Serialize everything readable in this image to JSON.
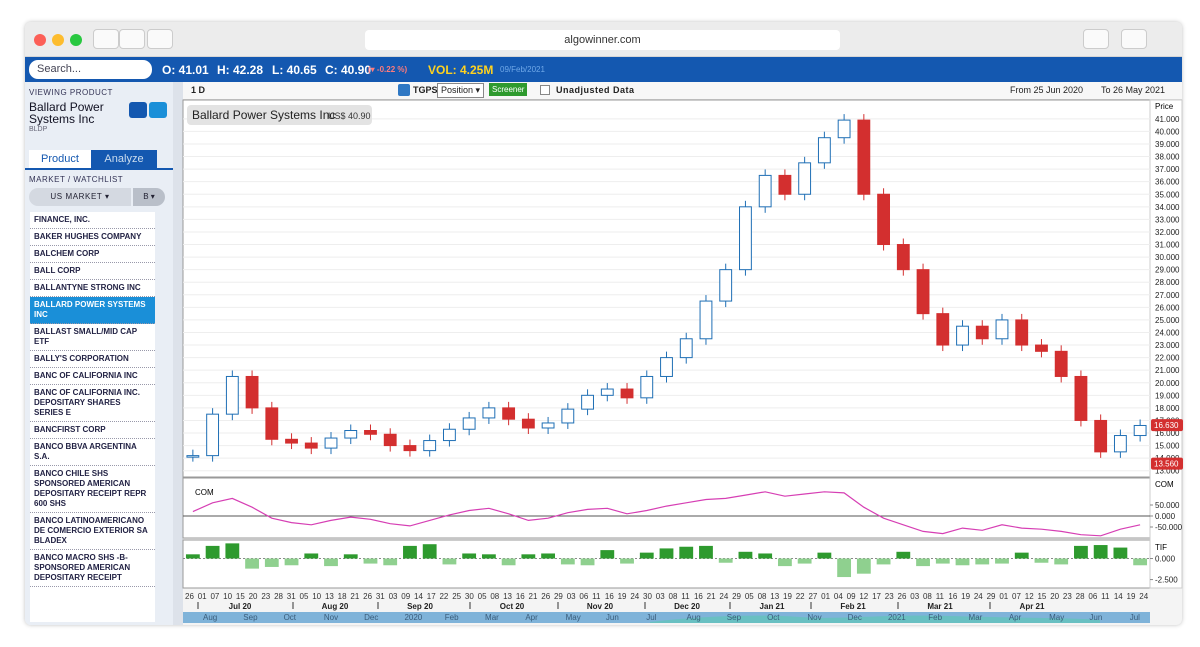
{
  "browser": {
    "url": "algowinner.com"
  },
  "toolbar": {
    "search": "Search...",
    "open": "O: 41.01",
    "high": "H: 42.28",
    "low": "L: 40.65",
    "close": "C: 40.90",
    "change": "(▾ -0.22 %)",
    "volume": "VOL: 4.25M",
    "date": "09/Feb/2021"
  },
  "sidebar": {
    "viewing": "VIEWING PRODUCT",
    "name": "Ballard Power Systems Inc",
    "ticker": "BLDP",
    "tabs": [
      "Product",
      "Analyze"
    ],
    "section": "MARKET / WATCHLIST",
    "market": "US MARKET ▾",
    "letter": "B ▾",
    "items": [
      "FINANCE, INC.",
      "BAKER HUGHES COMPANY",
      "BALCHEM CORP",
      "BALL CORP",
      "BALLANTYNE STRONG INC",
      "BALLARD POWER SYSTEMS INC",
      "BALLAST SMALL/MID CAP ETF",
      "BALLY'S CORPORATION",
      "BANC OF CALIFORNIA INC",
      "BANC OF CALIFORNIA INC. DEPOSITARY SHARES SERIES E",
      "BANCFIRST CORP",
      "BANCO BBVA ARGENTINA S.A.",
      "BANCO CHILE SHS SPONSORED AMERICAN DEPOSITARY RECEIPT REPR 600 SHS",
      "BANCO LATINOAMERICANO DE COMERCIO EXTERIOR SA BLADEX",
      "BANCO MACRO SHS -B- SPONSORED AMERICAN DEPOSITARY RECEIPT"
    ],
    "selected": 5
  },
  "chart_toolbar": {
    "interval": "1 D",
    "tgps": "TGPS",
    "position": "Position ▾",
    "screener": "Screener",
    "unadjusted": "Unadjusted Data",
    "from": "From 25 Jun 2020",
    "to": "To 26 May 2021"
  },
  "chart_data": {
    "type": "candlestick",
    "title": "Ballard Power Systems Inc",
    "price": "US$ 40.90",
    "axis_label": "Price",
    "up_color": "#1f6fb5",
    "down_color": "#d32f2f",
    "values": [
      14.2,
      17.5,
      20.5,
      18.0,
      15.5,
      15.2,
      14.8,
      15.6,
      16.2,
      15.9,
      15.0,
      14.6,
      15.4,
      16.3,
      17.2,
      18.0,
      17.1,
      16.4,
      16.8,
      17.9,
      19.0,
      19.5,
      18.8,
      20.5,
      22.0,
      23.5,
      26.5,
      29.0,
      34.0,
      36.5,
      35.0,
      37.5,
      39.5,
      40.9,
      35.0,
      31.0,
      29.0,
      25.5,
      23.0,
      24.5,
      23.5,
      25.0,
      23.0,
      22.5,
      20.5,
      17.0,
      14.5,
      15.8,
      16.6
    ],
    "ylim": [
      12.5,
      42.5
    ],
    "yticks": [
      {
        "value": 13,
        "label": "13.000"
      },
      {
        "value": 14,
        "label": "14.000"
      },
      {
        "value": 15,
        "label": "15.000"
      },
      {
        "value": 16,
        "label": "16.000"
      },
      {
        "value": 17,
        "label": "17.000"
      },
      {
        "value": 18,
        "label": "18.000"
      },
      {
        "value": 19,
        "label": "19.000"
      },
      {
        "value": 20,
        "label": "20.000"
      },
      {
        "value": 21,
        "label": "21.000"
      },
      {
        "value": 22,
        "label": "22.000"
      },
      {
        "value": 23,
        "label": "23.000"
      },
      {
        "value": 24,
        "label": "24.000"
      },
      {
        "value": 25,
        "label": "25.000"
      },
      {
        "value": 26,
        "label": "26.000"
      },
      {
        "value": 27,
        "label": "27.000"
      },
      {
        "value": 28,
        "label": "28.000"
      },
      {
        "value": 29,
        "label": "29.000"
      },
      {
        "value": 30,
        "label": "30.000"
      },
      {
        "value": 31,
        "label": "31.000"
      },
      {
        "value": 32,
        "label": "32.000"
      },
      {
        "value": 33,
        "label": "33.000"
      },
      {
        "value": 34,
        "label": "34.000"
      },
      {
        "value": 35,
        "label": "35.000"
      },
      {
        "value": 36,
        "label": "36.000"
      },
      {
        "value": 37,
        "label": "37.000"
      },
      {
        "value": 38,
        "label": "38.000"
      },
      {
        "value": 39,
        "label": "39.000"
      },
      {
        "value": 40,
        "label": "40.000"
      },
      {
        "value": 41,
        "label": "41.000"
      }
    ],
    "price_tags": [
      {
        "value": 16.63,
        "label": "16.630",
        "color": "#d32f2f"
      },
      {
        "value": 13.56,
        "label": "13.560",
        "color": "#d32f2f"
      }
    ],
    "grid": true,
    "com": {
      "name": "COM",
      "color": "#d63fb4",
      "ylim": [
        -100,
        100
      ],
      "yticks": [
        {
          "value": 50,
          "label": "50.000"
        },
        {
          "value": 0,
          "label": "0.000"
        },
        {
          "value": -50,
          "label": "-50.000"
        }
      ],
      "values": [
        20,
        60,
        80,
        40,
        -10,
        -30,
        -40,
        -20,
        -5,
        -15,
        -35,
        -45,
        -20,
        5,
        25,
        35,
        10,
        -20,
        -10,
        15,
        30,
        35,
        10,
        25,
        45,
        60,
        75,
        80,
        95,
        110,
        90,
        100,
        110,
        105,
        40,
        -10,
        -40,
        -70,
        -80,
        -55,
        -65,
        -40,
        -55,
        -60,
        -70,
        -85,
        -90,
        -60,
        -40
      ]
    },
    "tif": {
      "name": "TIF",
      "color": "#2e9a2e",
      "neg_color": "#8fd08f",
      "ylim": [
        -3.5,
        2.2
      ],
      "yticks": [
        {
          "value": 0,
          "label": "0.000"
        },
        {
          "value": -2.5,
          "label": "-2.500"
        }
      ],
      "values": [
        0.5,
        1.5,
        1.8,
        -1.2,
        -1.0,
        -0.8,
        0.6,
        -0.9,
        0.5,
        -0.6,
        -0.8,
        1.5,
        1.7,
        -0.7,
        0.6,
        0.5,
        -0.8,
        0.5,
        0.6,
        -0.7,
        -0.8,
        1.0,
        -0.6,
        0.7,
        1.2,
        1.4,
        1.5,
        -0.5,
        0.8,
        0.6,
        -0.9,
        -0.6,
        0.7,
        -2.2,
        -1.8,
        -0.7,
        0.8,
        -0.9,
        -0.6,
        -0.8,
        -0.7,
        -0.6,
        0.7,
        -0.5,
        -0.7,
        1.5,
        1.6,
        1.3,
        -0.8
      ]
    },
    "day_labels": [
      "26",
      "01",
      "07",
      "10",
      "15",
      "20",
      "23",
      "28",
      "31",
      "05",
      "10",
      "13",
      "18",
      "21",
      "26",
      "31",
      "03",
      "09",
      "14",
      "17",
      "22",
      "25",
      "30",
      "05",
      "08",
      "13",
      "16",
      "21",
      "26",
      "29",
      "03",
      "06",
      "11",
      "16",
      "19",
      "24",
      "30",
      "03",
      "08",
      "11",
      "16",
      "21",
      "24",
      "29",
      "05",
      "08",
      "13",
      "19",
      "22",
      "27",
      "01",
      "04",
      "09",
      "12",
      "17",
      "23",
      "26",
      "03",
      "08",
      "11",
      "16",
      "19",
      "24",
      "29",
      "01",
      "07",
      "12",
      "15",
      "20",
      "23",
      "28",
      "06",
      "11",
      "14",
      "19",
      "24"
    ],
    "month_labels": [
      "Jul 20",
      "Aug 20",
      "Sep 20",
      "Oct 20",
      "Nov 20",
      "Dec 20",
      "Jan 21",
      "Feb 21",
      "Mar 21",
      "Apr 21"
    ],
    "navigator_labels": [
      "Aug",
      "Sep",
      "Oct",
      "Nov",
      "Dec",
      "2020",
      "Feb",
      "Mar",
      "Apr",
      "May",
      "Jun",
      "Jul",
      "Aug",
      "Sep",
      "Oct",
      "Nov",
      "Dec",
      "2021",
      "Feb",
      "Mar",
      "Apr",
      "May",
      "Jun",
      "Jul"
    ]
  }
}
